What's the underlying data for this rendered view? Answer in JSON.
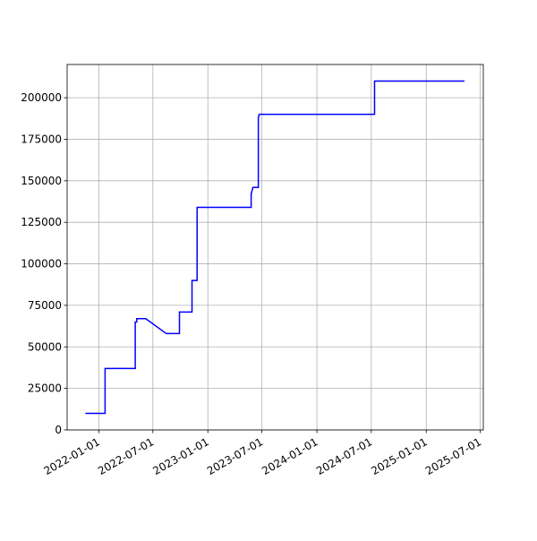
{
  "chart_data": {
    "type": "line",
    "x": [
      "2021-11-17",
      "2022-01-22",
      "2022-01-22",
      "2022-05-03",
      "2022-05-03",
      "2022-05-08",
      "2022-05-08",
      "2022-06-07",
      "2022-08-15",
      "2022-09-28",
      "2022-09-28",
      "2022-11-09",
      "2022-11-09",
      "2022-11-26",
      "2022-11-26",
      "2023-05-26",
      "2023-05-26",
      "2023-06-01",
      "2023-06-19",
      "2023-06-19",
      "2023-06-22",
      "2024-07-12",
      "2024-07-12",
      "2025-05-09"
    ],
    "series": [
      {
        "color": "#0000ff",
        "values": [
          10000,
          10000,
          37000,
          37000,
          65000,
          65000,
          67000,
          67000,
          58000,
          58000,
          71000,
          71000,
          90000,
          90000,
          134000,
          134000,
          142000,
          146000,
          146000,
          188000,
          190000,
          190000,
          210000,
          210000
        ]
      }
    ],
    "xlim": [
      "2021-09-17",
      "2025-07-11"
    ],
    "xticks": [
      "2022-01-01",
      "2022-07-01",
      "2023-01-01",
      "2023-07-01",
      "2024-01-01",
      "2024-07-01",
      "2025-01-01",
      "2025-07-01"
    ],
    "ylim": [
      0,
      220000
    ],
    "yticks": [
      0,
      25000,
      50000,
      75000,
      100000,
      125000,
      150000,
      175000,
      200000
    ],
    "grid": true
  }
}
